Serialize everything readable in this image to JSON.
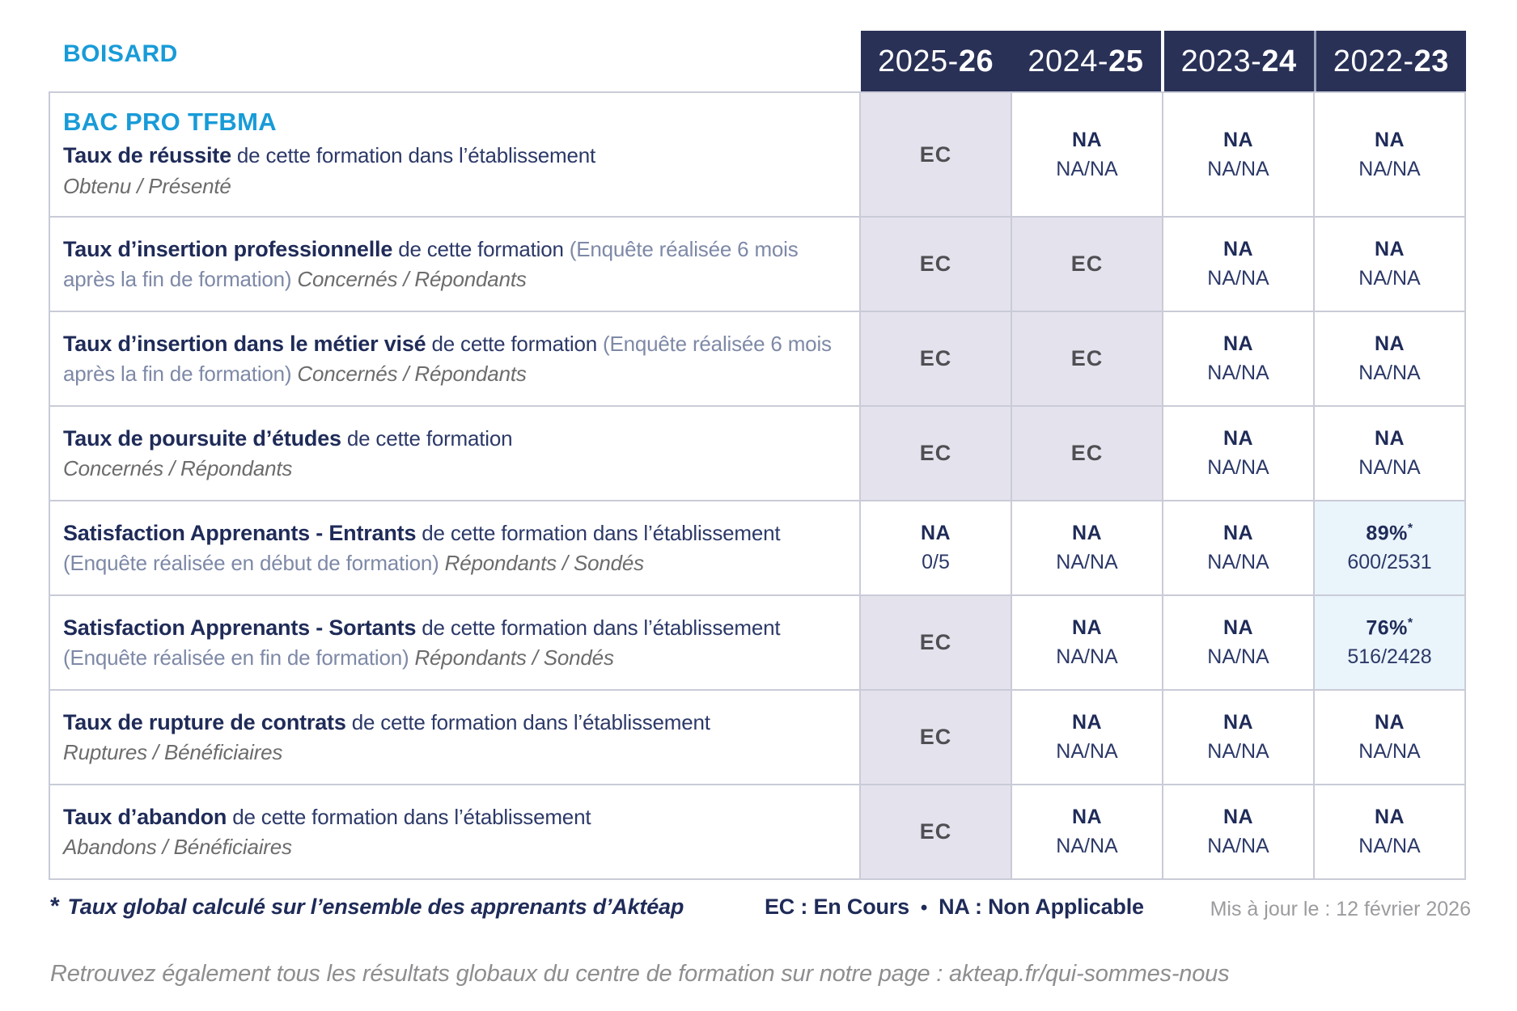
{
  "brand": {
    "name": "BOISARD"
  },
  "colors": {
    "accent_cyan": "#189bd8",
    "navy": "#1f2b58",
    "header_bg": "#293157",
    "ec_cell_bg": "#e4e3ed",
    "pct_cell_bg": "#eaf4fb",
    "border": "#c9cbd7"
  },
  "header": {
    "columns": [
      {
        "start": "2025-",
        "end": "26"
      },
      {
        "start": "2024-",
        "end": "25"
      },
      {
        "start": "2023-",
        "end": "24"
      },
      {
        "start": "2022-",
        "end": "23"
      }
    ]
  },
  "table": {
    "rows": [
      {
        "badge": "BAC PRO TFBMA",
        "title": "Taux de réussite",
        "rest": " de cette formation dans l’établissement",
        "note": "",
        "subtitle": "Obtenu / Présenté",
        "cells": [
          {
            "line1": "EC",
            "line2": ""
          },
          {
            "line1": "NA",
            "line2": "NA/NA"
          },
          {
            "line1": "NA",
            "line2": "NA/NA"
          },
          {
            "line1": "NA",
            "line2": "NA/NA"
          }
        ]
      },
      {
        "badge": "",
        "title": "Taux d’insertion professionnelle",
        "rest": " de cette formation ",
        "note": "(Enquête réalisée 6 mois après la fin de formation) ",
        "subtitle": "Concernés / Répondants",
        "cells": [
          {
            "line1": "EC",
            "line2": ""
          },
          {
            "line1": "EC",
            "line2": ""
          },
          {
            "line1": "NA",
            "line2": "NA/NA"
          },
          {
            "line1": "NA",
            "line2": "NA/NA"
          }
        ]
      },
      {
        "badge": "",
        "title": "Taux d’insertion dans le métier visé",
        "rest": " de cette formation ",
        "note": "(Enquête réalisée 6 mois après la fin de formation) ",
        "subtitle": "Concernés / Répondants",
        "cells": [
          {
            "line1": "EC",
            "line2": ""
          },
          {
            "line1": "EC",
            "line2": ""
          },
          {
            "line1": "NA",
            "line2": "NA/NA"
          },
          {
            "line1": "NA",
            "line2": "NA/NA"
          }
        ]
      },
      {
        "badge": "",
        "title": "Taux de poursuite d’études",
        "rest": " de cette formation",
        "note": "",
        "subtitle": "Concernés / Répondants",
        "cells": [
          {
            "line1": "EC",
            "line2": ""
          },
          {
            "line1": "EC",
            "line2": ""
          },
          {
            "line1": "NA",
            "line2": "NA/NA"
          },
          {
            "line1": "NA",
            "line2": "NA/NA"
          }
        ]
      },
      {
        "badge": "",
        "title": "Satisfaction Apprenants - Entrants",
        "rest": " de cette formation dans l’établissement ",
        "note": "(Enquête réalisée en début de formation) ",
        "subtitle": "Répondants / Sondés",
        "cells": [
          {
            "line1": "NA",
            "line2": "0/5"
          },
          {
            "line1": "NA",
            "line2": "NA/NA"
          },
          {
            "line1": "NA",
            "line2": "NA/NA"
          },
          {
            "line1": "89%",
            "sup": "*",
            "line2": "600/2531"
          }
        ]
      },
      {
        "badge": "",
        "title": "Satisfaction Apprenants - Sortants",
        "rest": " de cette formation dans l’établissement ",
        "note": "(Enquête réalisée en fin de formation) ",
        "subtitle": "Répondants / Sondés",
        "cells": [
          {
            "line1": "EC",
            "line2": ""
          },
          {
            "line1": "NA",
            "line2": "NA/NA"
          },
          {
            "line1": "NA",
            "line2": "NA/NA"
          },
          {
            "line1": "76%",
            "sup": "*",
            "line2": "516/2428"
          }
        ]
      },
      {
        "badge": "",
        "title": "Taux de rupture de contrats",
        "rest": " de cette formation dans l’établissement",
        "note": "",
        "subtitle": "Ruptures / Bénéficiaires",
        "cells": [
          {
            "line1": "EC",
            "line2": ""
          },
          {
            "line1": "NA",
            "line2": "NA/NA"
          },
          {
            "line1": "NA",
            "line2": "NA/NA"
          },
          {
            "line1": "NA",
            "line2": "NA/NA"
          }
        ]
      },
      {
        "badge": "",
        "title": "Taux d’abandon",
        "rest": " de cette formation dans l’établissement",
        "note": "",
        "subtitle": "Abandons / Bénéficiaires",
        "cells": [
          {
            "line1": "EC",
            "line2": ""
          },
          {
            "line1": "NA",
            "line2": "NA/NA"
          },
          {
            "line1": "NA",
            "line2": "NA/NA"
          },
          {
            "line1": "NA",
            "line2": "NA/NA"
          }
        ]
      }
    ]
  },
  "footer": {
    "footnote_star": "*",
    "footnote_text": "Taux global calculé sur l’ensemble des apprenants d’Aktéap",
    "legend_ec": "EC : En Cours",
    "legend_sep": "•",
    "legend_na": "NA : Non Applicable",
    "updated": "Mis à jour le : 12 février 2026",
    "bottom_line": "Retrouvez également tous les résultats globaux du centre de formation sur notre page : akteap.fr/qui-sommes-nous"
  }
}
